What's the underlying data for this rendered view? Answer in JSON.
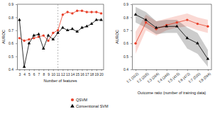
{
  "chart_data": [
    {
      "type": "line",
      "x_label": "Number of features",
      "y_label": "AUROC",
      "x": [
        3,
        4,
        5,
        6,
        7,
        8,
        9,
        10,
        11,
        12,
        13,
        14,
        15,
        16,
        17,
        18,
        19,
        20
      ],
      "xlim": [
        2.5,
        20.5
      ],
      "xticks": [
        3,
        4,
        5,
        6,
        7,
        8,
        9,
        10,
        11,
        12,
        13,
        14,
        15,
        16,
        17,
        18,
        19,
        20
      ],
      "ylim": [
        0.4,
        0.9
      ],
      "yticks": [
        0.4,
        0.5,
        0.6,
        0.7,
        0.8,
        0.9
      ],
      "reference_line": 11,
      "legend": "bottom",
      "series": [
        {
          "name": "QSVM",
          "color": "#e8402a",
          "marker": "circle",
          "values": [
            0.64,
            0.62,
            0.63,
            0.64,
            0.65,
            0.66,
            0.62,
            0.68,
            0.7,
            0.82,
            0.84,
            0.83,
            0.85,
            0.85,
            0.84,
            0.84,
            0.84,
            0.83
          ]
        },
        {
          "name": "Conventional SVM",
          "color": "#000000",
          "marker": "triangle",
          "values": [
            0.78,
            0.42,
            0.6,
            0.66,
            0.67,
            0.56,
            0.66,
            0.63,
            0.68,
            0.72,
            0.7,
            0.71,
            0.69,
            0.72,
            0.73,
            0.75,
            0.78,
            0.78
          ]
        }
      ]
    },
    {
      "type": "line",
      "x_label": "Outcome ratio (number of training data)",
      "y_label": "AUROC",
      "categories": [
        "1:1 (102)",
        "1:2 (205)",
        "1:3 (264)",
        "1:4 (346)",
        "1:5 (415)",
        "1:6 (472)",
        "1:7 (520)",
        "1:8 (594)"
      ],
      "ylim": [
        0.4,
        0.9
      ],
      "yticks": [
        0.4,
        0.5,
        0.6,
        0.7,
        0.8,
        0.9
      ],
      "series": [
        {
          "name": "QSVM",
          "color": "#e8402a",
          "marker": "circle",
          "values": [
            0.6,
            0.76,
            0.71,
            0.74,
            0.76,
            0.78,
            0.75,
            0.73
          ],
          "lower": [
            0.52,
            0.7,
            0.66,
            0.7,
            0.72,
            0.73,
            0.7,
            0.68
          ],
          "upper": [
            0.69,
            0.82,
            0.77,
            0.79,
            0.81,
            0.83,
            0.8,
            0.78
          ]
        },
        {
          "name": "Conventional SVM",
          "color": "#000000",
          "marker": "triangle",
          "values": [
            0.82,
            0.78,
            0.72,
            0.73,
            0.73,
            0.64,
            0.6,
            0.48
          ],
          "lower": [
            0.76,
            0.72,
            0.67,
            0.68,
            0.68,
            0.56,
            0.52,
            0.42
          ],
          "upper": [
            0.88,
            0.84,
            0.77,
            0.78,
            0.78,
            0.72,
            0.68,
            0.55
          ]
        }
      ]
    }
  ]
}
